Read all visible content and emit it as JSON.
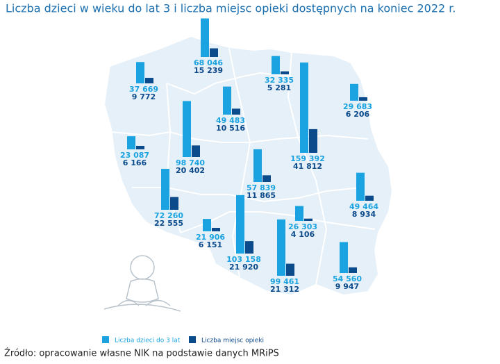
{
  "chart_data": {
    "type": "map-bar",
    "title": "Liczba dzieci w wieku do lat 3 i liczba miejsc opieki dostępnych na koniec 2022 r.",
    "series": [
      {
        "name": "Liczba dzieci do 3 lat",
        "color": "#1aa3e0",
        "values": [
          68046,
          37669,
          32335,
          49483,
          29683,
          159392,
          98740,
          23087,
          57839,
          72260,
          49464,
          21906,
          26303,
          103158,
          99461,
          54560
        ],
        "value_labels": [
          "68 046",
          "37 669",
          "32 335",
          "49 483",
          "29 683",
          "159 392",
          "98 740",
          "23 087",
          "57 839",
          "72 260",
          "49 464",
          "21 906",
          "26 303",
          "103 158",
          "99 461",
          "54 560"
        ]
      },
      {
        "name": "Liczba miejsc opieki",
        "color": "#0b4a8b",
        "values": [
          15239,
          9772,
          5281,
          10516,
          6206,
          41812,
          20402,
          6166,
          11865,
          22555,
          8934,
          6151,
          4106,
          21920,
          21312,
          9947
        ],
        "value_labels": [
          "15 239",
          "9 772",
          "5 281",
          "10 516",
          "6 206",
          "41 812",
          "20 402",
          "6 166",
          "11 865",
          "22 555",
          "8 934",
          "6 151",
          "4 106",
          "21 920",
          "21 312",
          "9 947"
        ]
      }
    ],
    "source": "Źródło: opracowanie własne NIK na podstawie danych MRiPS"
  }
}
